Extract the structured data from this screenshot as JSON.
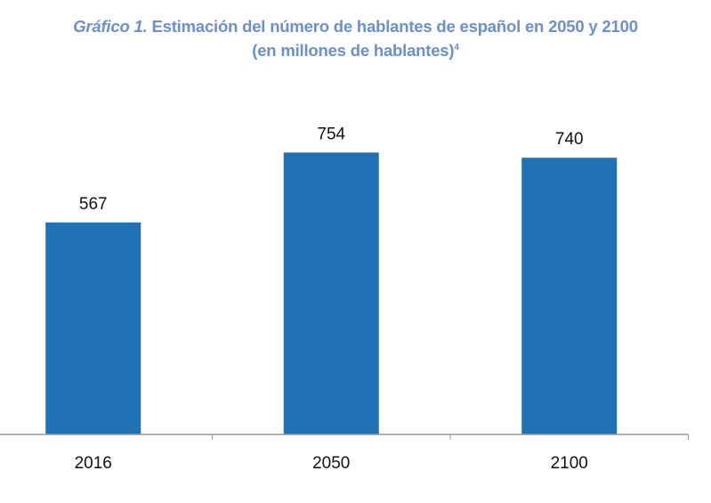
{
  "chart_data": {
    "type": "bar",
    "title_prefix": "Gráfico 1.",
    "title": "Estimación del número de hablantes de español en 2050 y 2100",
    "subtitle": "(en millones de hablantes)",
    "subtitle_footnote": "4",
    "categories": [
      "2016",
      "2050",
      "2100"
    ],
    "values": [
      567,
      754,
      740
    ],
    "data_labels": [
      "567",
      "754",
      "740"
    ],
    "xlabel": "",
    "ylabel": "",
    "ylim": [
      0,
      1000
    ],
    "grid": false,
    "legend": "none",
    "colors": {
      "bar": "#2171b5",
      "title": "#6b8fcf",
      "axis": "#999999",
      "text": "#111111"
    }
  }
}
